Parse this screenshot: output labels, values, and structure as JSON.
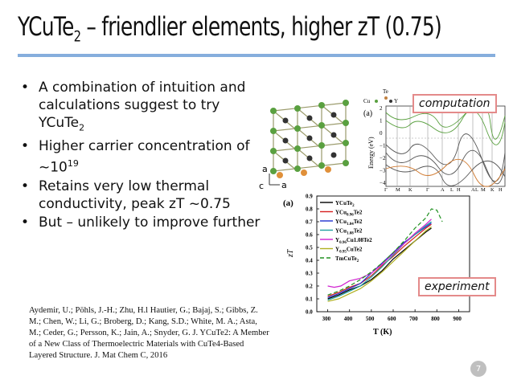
{
  "slide": {
    "title_main": "YCuTe",
    "title_sub": "2",
    "title_rest": " – friendlier elements, higher zT (0.75)",
    "page_number": "7",
    "accent_color": "#86aedd",
    "tag_border_color": "#e48a8a"
  },
  "bullets": [
    {
      "text": "A combination of intuition and calculations suggest to try YCuTe",
      "sub": "2"
    },
    {
      "text": "Higher carrier concentration of ~10",
      "sup": "19"
    },
    {
      "text": "Retains very low thermal conductivity, peak zT ~0.75"
    },
    {
      "text": "But – unlikely to improve further"
    }
  ],
  "citation": "Aydemir, U.; Pöhls, J.-H.; Zhu, H.l Hautier, G.; Bajaj, S.; Gibbs, Z. M.; Chen, W.; Li, G.; Broberg, D.; Kang, S.D.; White, M. A.; Asta, M.; Ceder, G.; Persson, K.; Jain, A.; Snyder, G. J. YCuTe2: A Member of a New Class of Thermoelectric Materials with CuTe4-Based Layered Structure. J. Mat Chem C, 2016",
  "tags": {
    "computation": "computation",
    "experiment": "experiment"
  },
  "crystal": {
    "axis_a": "a",
    "axis_c": "c",
    "axis_a2": "a"
  },
  "band": {
    "panel": "(a)",
    "legend": {
      "te": "Te",
      "cu": "Cu",
      "y": "Y"
    },
    "ylabel": "Energy (eV)",
    "yticks": [
      "2",
      "1",
      "0",
      "−1",
      "−2",
      "−3",
      "−4"
    ],
    "kpoints": [
      "Γ",
      "M",
      "K",
      "Γ",
      "A",
      "L",
      "H",
      "A",
      "L",
      "M",
      "K",
      "H"
    ]
  },
  "chart_data": {
    "type": "line",
    "panel": "(a)",
    "xlabel": "T (K)",
    "ylabel": "zT",
    "xlim": [
      250,
      950
    ],
    "ylim": [
      0.0,
      0.9
    ],
    "xticks": [
      300,
      400,
      500,
      600,
      700,
      800,
      900
    ],
    "yticks": [
      0.0,
      0.1,
      0.2,
      0.3,
      0.4,
      0.5,
      0.6,
      0.7,
      0.8,
      0.9
    ],
    "legend_position": "top-left",
    "series": [
      {
        "name": "YCuTe2",
        "label": "YCuTe",
        "label_sub": "2",
        "color": "#000000",
        "dash": "",
        "x": [
          300,
          350,
          400,
          450,
          500,
          550,
          600,
          650,
          700,
          750,
          775
        ],
        "y": [
          0.1,
          0.13,
          0.17,
          0.2,
          0.25,
          0.32,
          0.41,
          0.48,
          0.55,
          0.62,
          0.65
        ]
      },
      {
        "name": "YCu0.96Te2",
        "label": "YCu",
        "label_sub": "0.96",
        "label_tail": "Te2",
        "color": "#d62020",
        "dash": "",
        "x": [
          300,
          350,
          400,
          450,
          500,
          550,
          600,
          650,
          700,
          750,
          775
        ],
        "y": [
          0.12,
          0.15,
          0.19,
          0.22,
          0.28,
          0.36,
          0.43,
          0.51,
          0.58,
          0.65,
          0.68
        ]
      },
      {
        "name": "YCu1.04Te2",
        "label": "YCu",
        "label_sub": "1.04",
        "label_tail": "Te2",
        "color": "#2030d0",
        "dash": "",
        "x": [
          300,
          350,
          400,
          450,
          500,
          550,
          600,
          650,
          700,
          750,
          775
        ],
        "y": [
          0.11,
          0.14,
          0.18,
          0.22,
          0.3,
          0.38,
          0.46,
          0.54,
          0.6,
          0.66,
          0.69
        ]
      },
      {
        "name": "YCu1.08Te2",
        "label": "YCu",
        "label_sub": "1.08",
        "label_tail": "Te2",
        "color": "#20a0a0",
        "dash": "",
        "x": [
          300,
          350,
          400,
          450,
          500,
          550,
          600,
          650,
          700,
          750,
          775
        ],
        "y": [
          0.09,
          0.12,
          0.16,
          0.2,
          0.27,
          0.35,
          0.44,
          0.53,
          0.6,
          0.67,
          0.7
        ]
      },
      {
        "name": "Y0.96Cu1.08Te2",
        "label": "Y",
        "label_sub": "0.96",
        "label_tail": "Cu1.08Te2",
        "color": "#d020d0",
        "dash": "",
        "x": [
          300,
          330,
          360,
          400,
          450,
          500,
          550,
          600,
          650,
          700,
          750,
          775
        ],
        "y": [
          0.2,
          0.19,
          0.2,
          0.24,
          0.26,
          0.3,
          0.37,
          0.45,
          0.53,
          0.61,
          0.68,
          0.72
        ]
      },
      {
        "name": "Y0.95CuTe2",
        "label": "Y",
        "label_sub": "0.95",
        "label_tail": "CuTe2",
        "color": "#b0b020",
        "dash": "",
        "x": [
          300,
          350,
          400,
          450,
          500,
          550,
          600,
          650,
          700,
          750,
          775
        ],
        "y": [
          0.08,
          0.1,
          0.14,
          0.18,
          0.24,
          0.31,
          0.39,
          0.47,
          0.55,
          0.63,
          0.66
        ]
      },
      {
        "name": "TmCuTe2",
        "label": "TmCuTe",
        "label_sub": "2",
        "color": "#209020",
        "dash": "5,3",
        "x": [
          300,
          350,
          400,
          450,
          500,
          550,
          600,
          650,
          700,
          750,
          775,
          800,
          825
        ],
        "y": [
          0.13,
          0.16,
          0.2,
          0.25,
          0.31,
          0.38,
          0.46,
          0.55,
          0.65,
          0.73,
          0.8,
          0.79,
          0.7
        ]
      }
    ]
  }
}
